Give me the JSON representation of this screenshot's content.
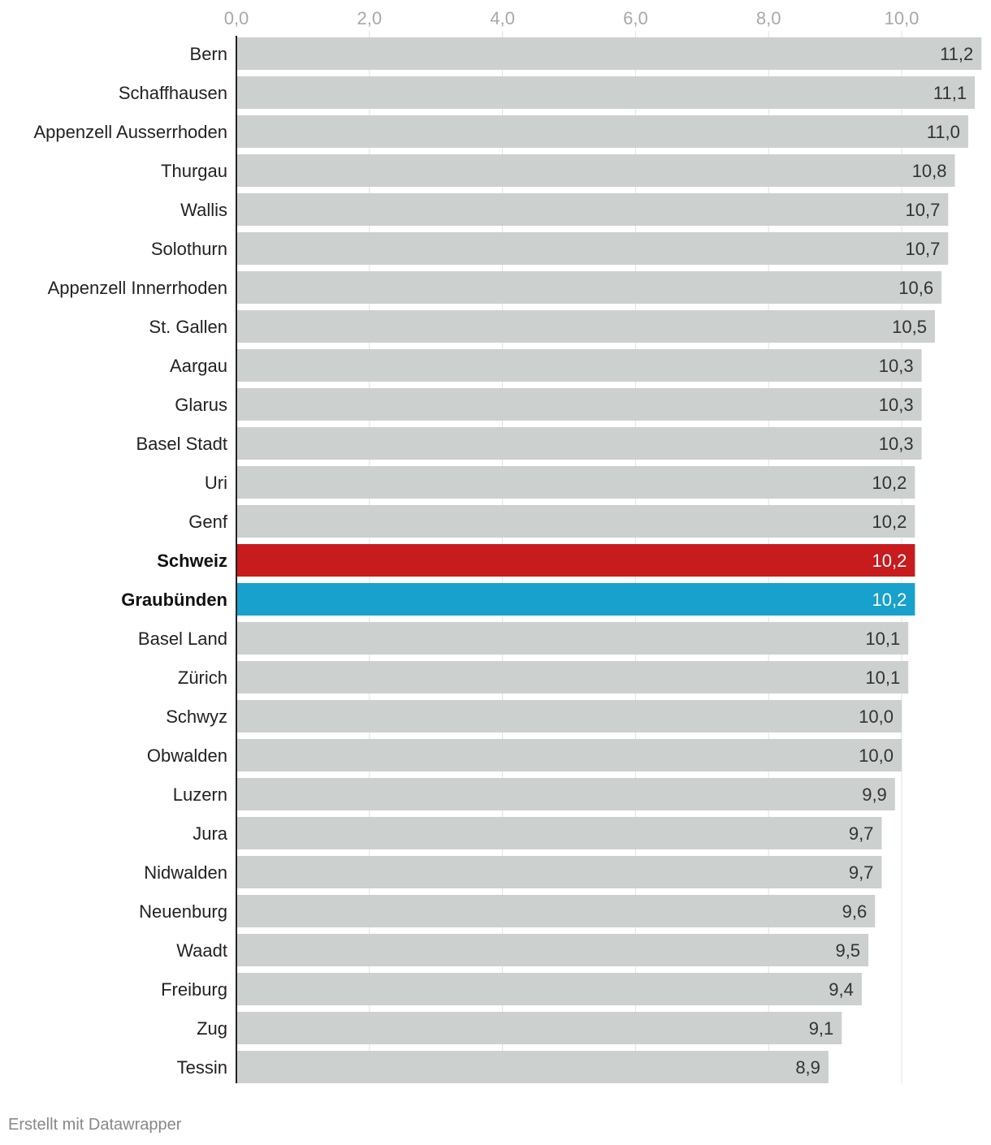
{
  "chart_data": {
    "type": "bar",
    "orientation": "horizontal",
    "categories": [
      "Bern",
      "Schaffhausen",
      "Appenzell Ausserrhoden",
      "Thurgau",
      "Wallis",
      "Solothurn",
      "Appenzell Innerrhoden",
      "St. Gallen",
      "Aargau",
      "Glarus",
      "Basel Stadt",
      "Uri",
      "Genf",
      "Schweiz",
      "Graubünden",
      "Basel Land",
      "Zürich",
      "Schwyz",
      "Obwalden",
      "Luzern",
      "Jura",
      "Nidwalden",
      "Neuenburg",
      "Waadt",
      "Freiburg",
      "Zug",
      "Tessin"
    ],
    "values": [
      11.2,
      11.1,
      11.0,
      10.8,
      10.7,
      10.7,
      10.6,
      10.5,
      10.3,
      10.3,
      10.3,
      10.2,
      10.2,
      10.2,
      10.2,
      10.1,
      10.1,
      10.0,
      10.0,
      9.9,
      9.7,
      9.7,
      9.6,
      9.5,
      9.4,
      9.1,
      8.9
    ],
    "value_labels": [
      "11,2",
      "11,1",
      "11,0",
      "10,8",
      "10,7",
      "10,7",
      "10,6",
      "10,5",
      "10,3",
      "10,3",
      "10,3",
      "10,2",
      "10,2",
      "10,2",
      "10,2",
      "10,1",
      "10,1",
      "10,0",
      "10,0",
      "9,9",
      "9,7",
      "9,7",
      "9,6",
      "9,5",
      "9,4",
      "9,1",
      "8,9"
    ],
    "highlight": {
      "Schweiz": "#c71b1e",
      "Graubünden": "#18a1cd"
    },
    "bold_categories": [
      "Schweiz",
      "Graubünden"
    ],
    "default_bar_color": "#ccd0ce",
    "x_ticks": [
      0,
      2,
      4,
      6,
      8,
      10
    ],
    "x_tick_labels": [
      "0,0",
      "2,0",
      "4,0",
      "6,0",
      "8,0",
      "10,0"
    ],
    "xlim": [
      0,
      11.2
    ],
    "grid": true,
    "axis_position": "top"
  },
  "footer": {
    "credit": "Erstellt mit Datawrapper"
  }
}
